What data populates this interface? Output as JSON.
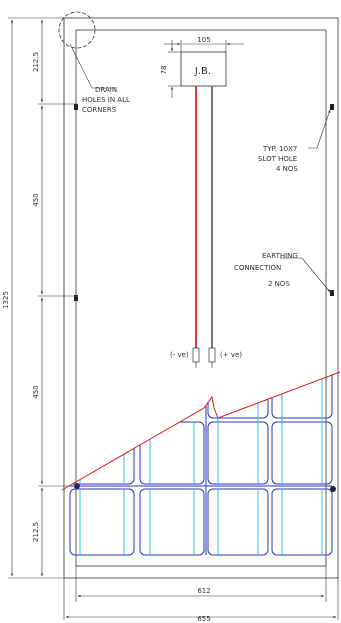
{
  "colors": {
    "line": "#333333",
    "cable_negative": "#e03a3a",
    "cable_positive": "#777777",
    "cell_outline": "#2a33c8",
    "cell_bus": "#29c7dd",
    "section_line": "#e01818"
  },
  "dimensions": {
    "overall_height": "1325",
    "top_segment": "212.5",
    "upper_middle": "450",
    "lower_middle": "450",
    "bottom_segment": "212.5",
    "inner_width": "612",
    "overall_width": "655",
    "jb_width": "105",
    "jb_height": "78"
  },
  "labels": {
    "junction_box": "J.B.",
    "drain_holes": [
      "DRAIN",
      "HOLES IN ALL",
      "CORNERS"
    ],
    "slot_hole": [
      "TYP. 10X7",
      "SLOT HOLE",
      "4 NOS"
    ],
    "earthing": [
      "EARTHING",
      "CONNECTION",
      "2 NOS"
    ],
    "negative": "(- ve)",
    "positive": "(+ ve)"
  },
  "icons": {
    "mounting_hole": "mounting-hole-icon",
    "drain_circle": "dashed-circle-icon"
  }
}
